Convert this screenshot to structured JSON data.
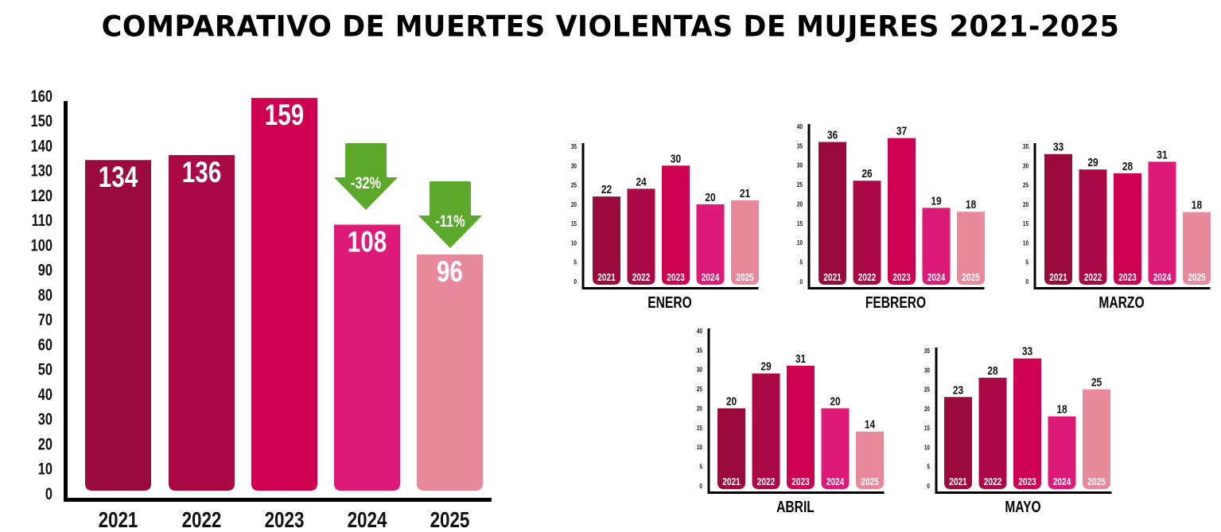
{
  "header": {
    "title": "COMPARATIVO DE MUERTES VIOLENTAS DE MUJERES 2021-2025"
  },
  "colors": {
    "2021": "#9B0A3C",
    "2022": "#AB0846",
    "2023": "#CE0050",
    "2024": "#DE1A78",
    "2025": "#E8899C",
    "arrow": "#5BA82A",
    "axis": "#000000"
  },
  "chart_data": [
    {
      "id": "total",
      "type": "bar",
      "title": "COMPARATIVO DE MUERTES VIOLENTAS DE MUJERES 2021-2025",
      "categories": [
        "2021",
        "2022",
        "2023",
        "2024",
        "2025"
      ],
      "values": [
        134,
        136,
        159,
        108,
        96
      ],
      "data_labels": [
        "134",
        "136",
        "159",
        "108",
        "96"
      ],
      "yticks": [
        0,
        10,
        20,
        30,
        40,
        50,
        60,
        70,
        80,
        90,
        100,
        110,
        120,
        130,
        140,
        150,
        160
      ],
      "ylim": [
        0,
        160
      ],
      "xlabel": "",
      "ylabel": "",
      "grid": false,
      "annotations": [
        {
          "category": "2024",
          "text": "-32%",
          "type": "down-arrow"
        },
        {
          "category": "2025",
          "text": "-11%",
          "type": "down-arrow"
        }
      ]
    },
    {
      "id": "enero",
      "type": "bar",
      "title": "ENERO",
      "categories": [
        "2021",
        "2022",
        "2023",
        "2024",
        "2025"
      ],
      "values": [
        22,
        24,
        30,
        20,
        21
      ],
      "data_labels": [
        "22",
        "24",
        "30",
        "20",
        "21"
      ],
      "yticks": [
        0,
        5,
        10,
        15,
        20,
        25,
        30,
        35
      ],
      "ylim": [
        0,
        35
      ]
    },
    {
      "id": "febrero",
      "type": "bar",
      "title": "FEBRERO",
      "categories": [
        "2021",
        "2022",
        "2023",
        "2024",
        "2025"
      ],
      "values": [
        36,
        26,
        37,
        19,
        18
      ],
      "data_labels": [
        "36",
        "26",
        "37",
        "19",
        "18"
      ],
      "yticks": [
        0,
        5,
        10,
        15,
        20,
        25,
        30,
        35,
        40
      ],
      "ylim": [
        0,
        40
      ]
    },
    {
      "id": "marzo",
      "type": "bar",
      "title": "MARZO",
      "categories": [
        "2021",
        "2022",
        "2023",
        "2024",
        "2025"
      ],
      "values": [
        33,
        29,
        28,
        31,
        18
      ],
      "data_labels": [
        "33",
        "29",
        "28",
        "31",
        "18"
      ],
      "yticks": [
        0,
        5,
        10,
        15,
        20,
        25,
        30,
        35
      ],
      "ylim": [
        0,
        35
      ]
    },
    {
      "id": "abril",
      "type": "bar",
      "title": "ABRIL",
      "categories": [
        "2021",
        "2022",
        "2023",
        "2024",
        "2025"
      ],
      "values": [
        20,
        29,
        31,
        20,
        14
      ],
      "data_labels": [
        "20",
        "29",
        "31",
        "20",
        "14"
      ],
      "yticks": [
        0,
        5,
        10,
        15,
        20,
        25,
        30,
        35,
        40
      ],
      "ylim": [
        0,
        40
      ]
    },
    {
      "id": "mayo",
      "type": "bar",
      "title": "MAYO",
      "categories": [
        "2021",
        "2022",
        "2023",
        "2024",
        "2025"
      ],
      "values": [
        23,
        28,
        33,
        18,
        25
      ],
      "data_labels": [
        "23",
        "28",
        "33",
        "18",
        "25"
      ],
      "yticks": [
        0,
        5,
        10,
        15,
        20,
        25,
        30,
        35
      ],
      "ylim": [
        0,
        35
      ]
    }
  ]
}
